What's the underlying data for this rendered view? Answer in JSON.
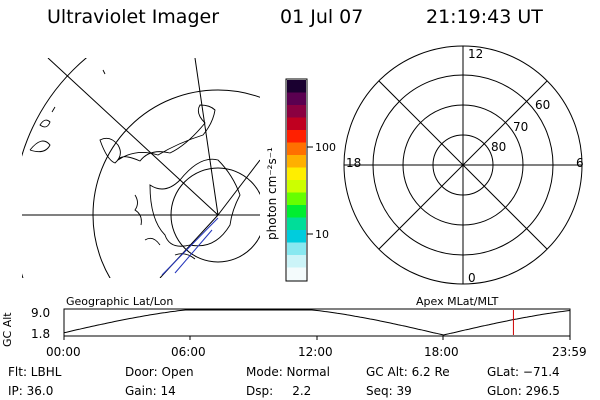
{
  "header": {
    "title": "Ultraviolet Imager",
    "date": "01 Jul 07",
    "time": "21:19:43 UT"
  },
  "maps": {
    "left_label": "Geographic Lat/Lon",
    "right_label": "Apex MLat/MLT"
  },
  "polar_plot": {
    "mlt_labels": {
      "top": "12",
      "left": "18",
      "right": "6",
      "bottom": "0"
    },
    "lat_labels": [
      "60",
      "70",
      "80"
    ]
  },
  "colorbar": {
    "unit_label": "photon cm⁻²s⁻¹",
    "ticks": [
      "100",
      "10"
    ],
    "scale": "log",
    "colors": [
      "#1a0030",
      "#5a0050",
      "#8a0040",
      "#c00020",
      "#ff2000",
      "#ff7000",
      "#ffb000",
      "#ffee00",
      "#ccff00",
      "#66ff00",
      "#00ee30",
      "#00dd99",
      "#00ccdd",
      "#88e8f0",
      "#ccf4f8",
      "#f4fbfc"
    ]
  },
  "altitude_plot": {
    "axis_label": "GC Alt",
    "y_ticks": [
      "9.0",
      "1.8"
    ],
    "x_ticks": [
      "00:00",
      "06:00",
      "12:00",
      "18:00",
      "23:59"
    ],
    "curve_color": "#000000",
    "marker_color": "#cc0000"
  },
  "status": {
    "flt": "Flt: LBHL",
    "door": "Door: Open",
    "mode": "Mode: Normal",
    "gc_alt": "GC Alt: 6.2 Re",
    "glat": "GLat: −71.4",
    "ip": "IP: 36.0",
    "gain": "Gain: 14",
    "dsp": "Dsp:     2.2",
    "seq": "Seq: 39",
    "glon": "GLon: 296.5"
  }
}
